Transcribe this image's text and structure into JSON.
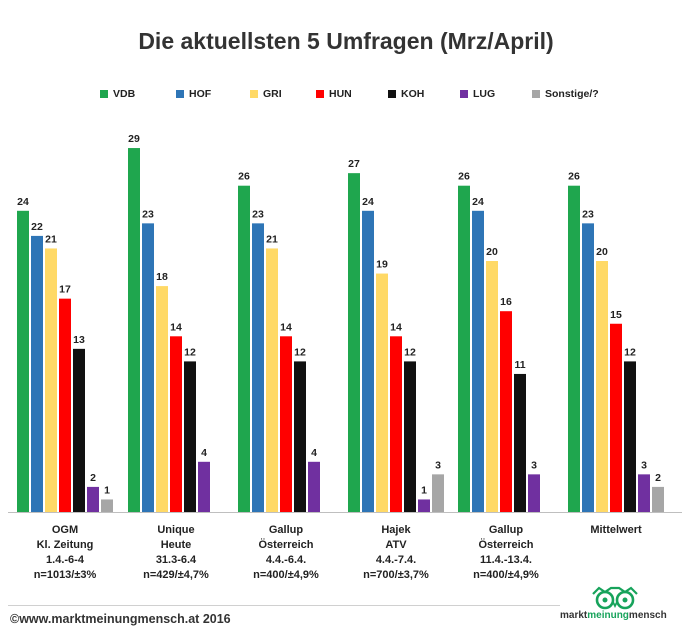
{
  "chart_data": {
    "type": "bar",
    "title": "Die aktuellsten 5 Umfragen (Mrz/April)",
    "series_names": [
      "VDB",
      "HOF",
      "GRI",
      "HUN",
      "KOH",
      "LUG",
      "Sonstige/?"
    ],
    "colors": [
      "#1fa64e",
      "#2e75b6",
      "#ffd966",
      "#ff0000",
      "#111111",
      "#7030a0",
      "#a6a6a6"
    ],
    "groups": [
      {
        "label_lines": [
          "OGM",
          "Kl. Zeitung",
          "1.4.-6-4",
          "n=1013/±3%"
        ],
        "values": [
          24,
          22,
          21,
          17,
          13,
          2,
          1
        ]
      },
      {
        "label_lines": [
          "Unique",
          "Heute",
          "31.3-6.4",
          "n=429/±4,7%"
        ],
        "values": [
          29,
          23,
          18,
          14,
          12,
          4,
          null
        ]
      },
      {
        "label_lines": [
          "Gallup",
          "Österreich",
          "4.4.-6.4.",
          "n=400/±4,9%"
        ],
        "values": [
          26,
          23,
          21,
          14,
          12,
          4,
          null
        ]
      },
      {
        "label_lines": [
          "Hajek",
          "ATV",
          "4.4.-7.4.",
          "n=700/±3,7%"
        ],
        "values": [
          27,
          24,
          19,
          14,
          12,
          1,
          3
        ]
      },
      {
        "label_lines": [
          "Gallup",
          "Österreich",
          "11.4.-13.4.",
          "n=400/±4,9%"
        ],
        "values": [
          26,
          24,
          20,
          16,
          11,
          3,
          null
        ]
      },
      {
        "label_lines": [
          "Mittelwert"
        ],
        "values": [
          26,
          23,
          20,
          15,
          12,
          3,
          2
        ]
      }
    ],
    "ylim": [
      0,
      30
    ],
    "grid": false,
    "legend_position": "top"
  },
  "footer": {
    "copyright": "©www.marktmeinungmensch.at 2016"
  },
  "brand": {
    "part1": "markt",
    "part2": "meinung",
    "part3": "mensch"
  }
}
